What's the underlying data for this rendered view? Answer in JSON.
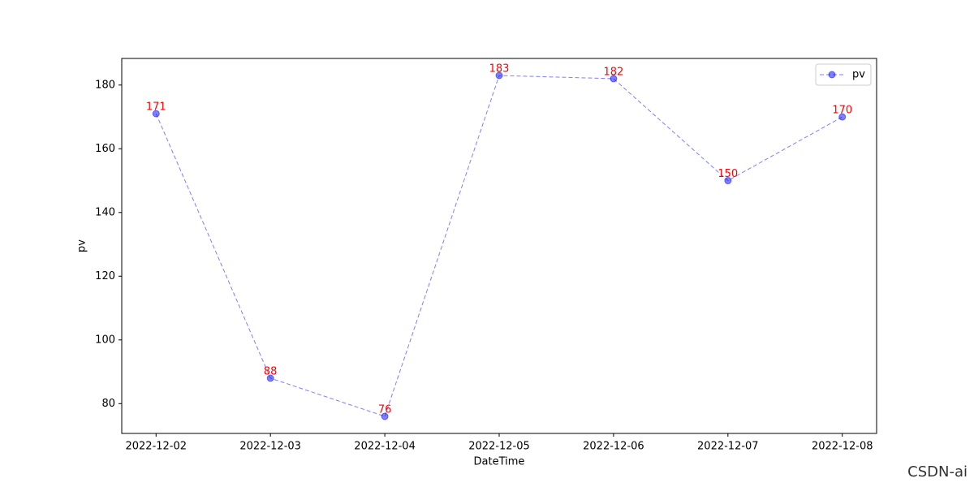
{
  "chart_data": {
    "type": "line",
    "title_x": "DateTime",
    "title_y": "pv",
    "x": [
      "2022-12-02",
      "2022-12-03",
      "2022-12-04",
      "2022-12-05",
      "2022-12-06",
      "2022-12-07",
      "2022-12-08"
    ],
    "series": [
      {
        "name": "pv",
        "color": "#0000ff",
        "values": [
          171,
          88,
          76,
          183,
          182,
          150,
          170
        ]
      }
    ],
    "ylim": [
      70.65,
      188.35
    ],
    "yticks": [
      80,
      100,
      120,
      140,
      160,
      180
    ],
    "linestyle": "dashed",
    "markers": true,
    "opacity": 0.5,
    "label_color": "#ff0000",
    "legend": "upper right",
    "grid": false
  },
  "watermark": "CSDN-ai"
}
